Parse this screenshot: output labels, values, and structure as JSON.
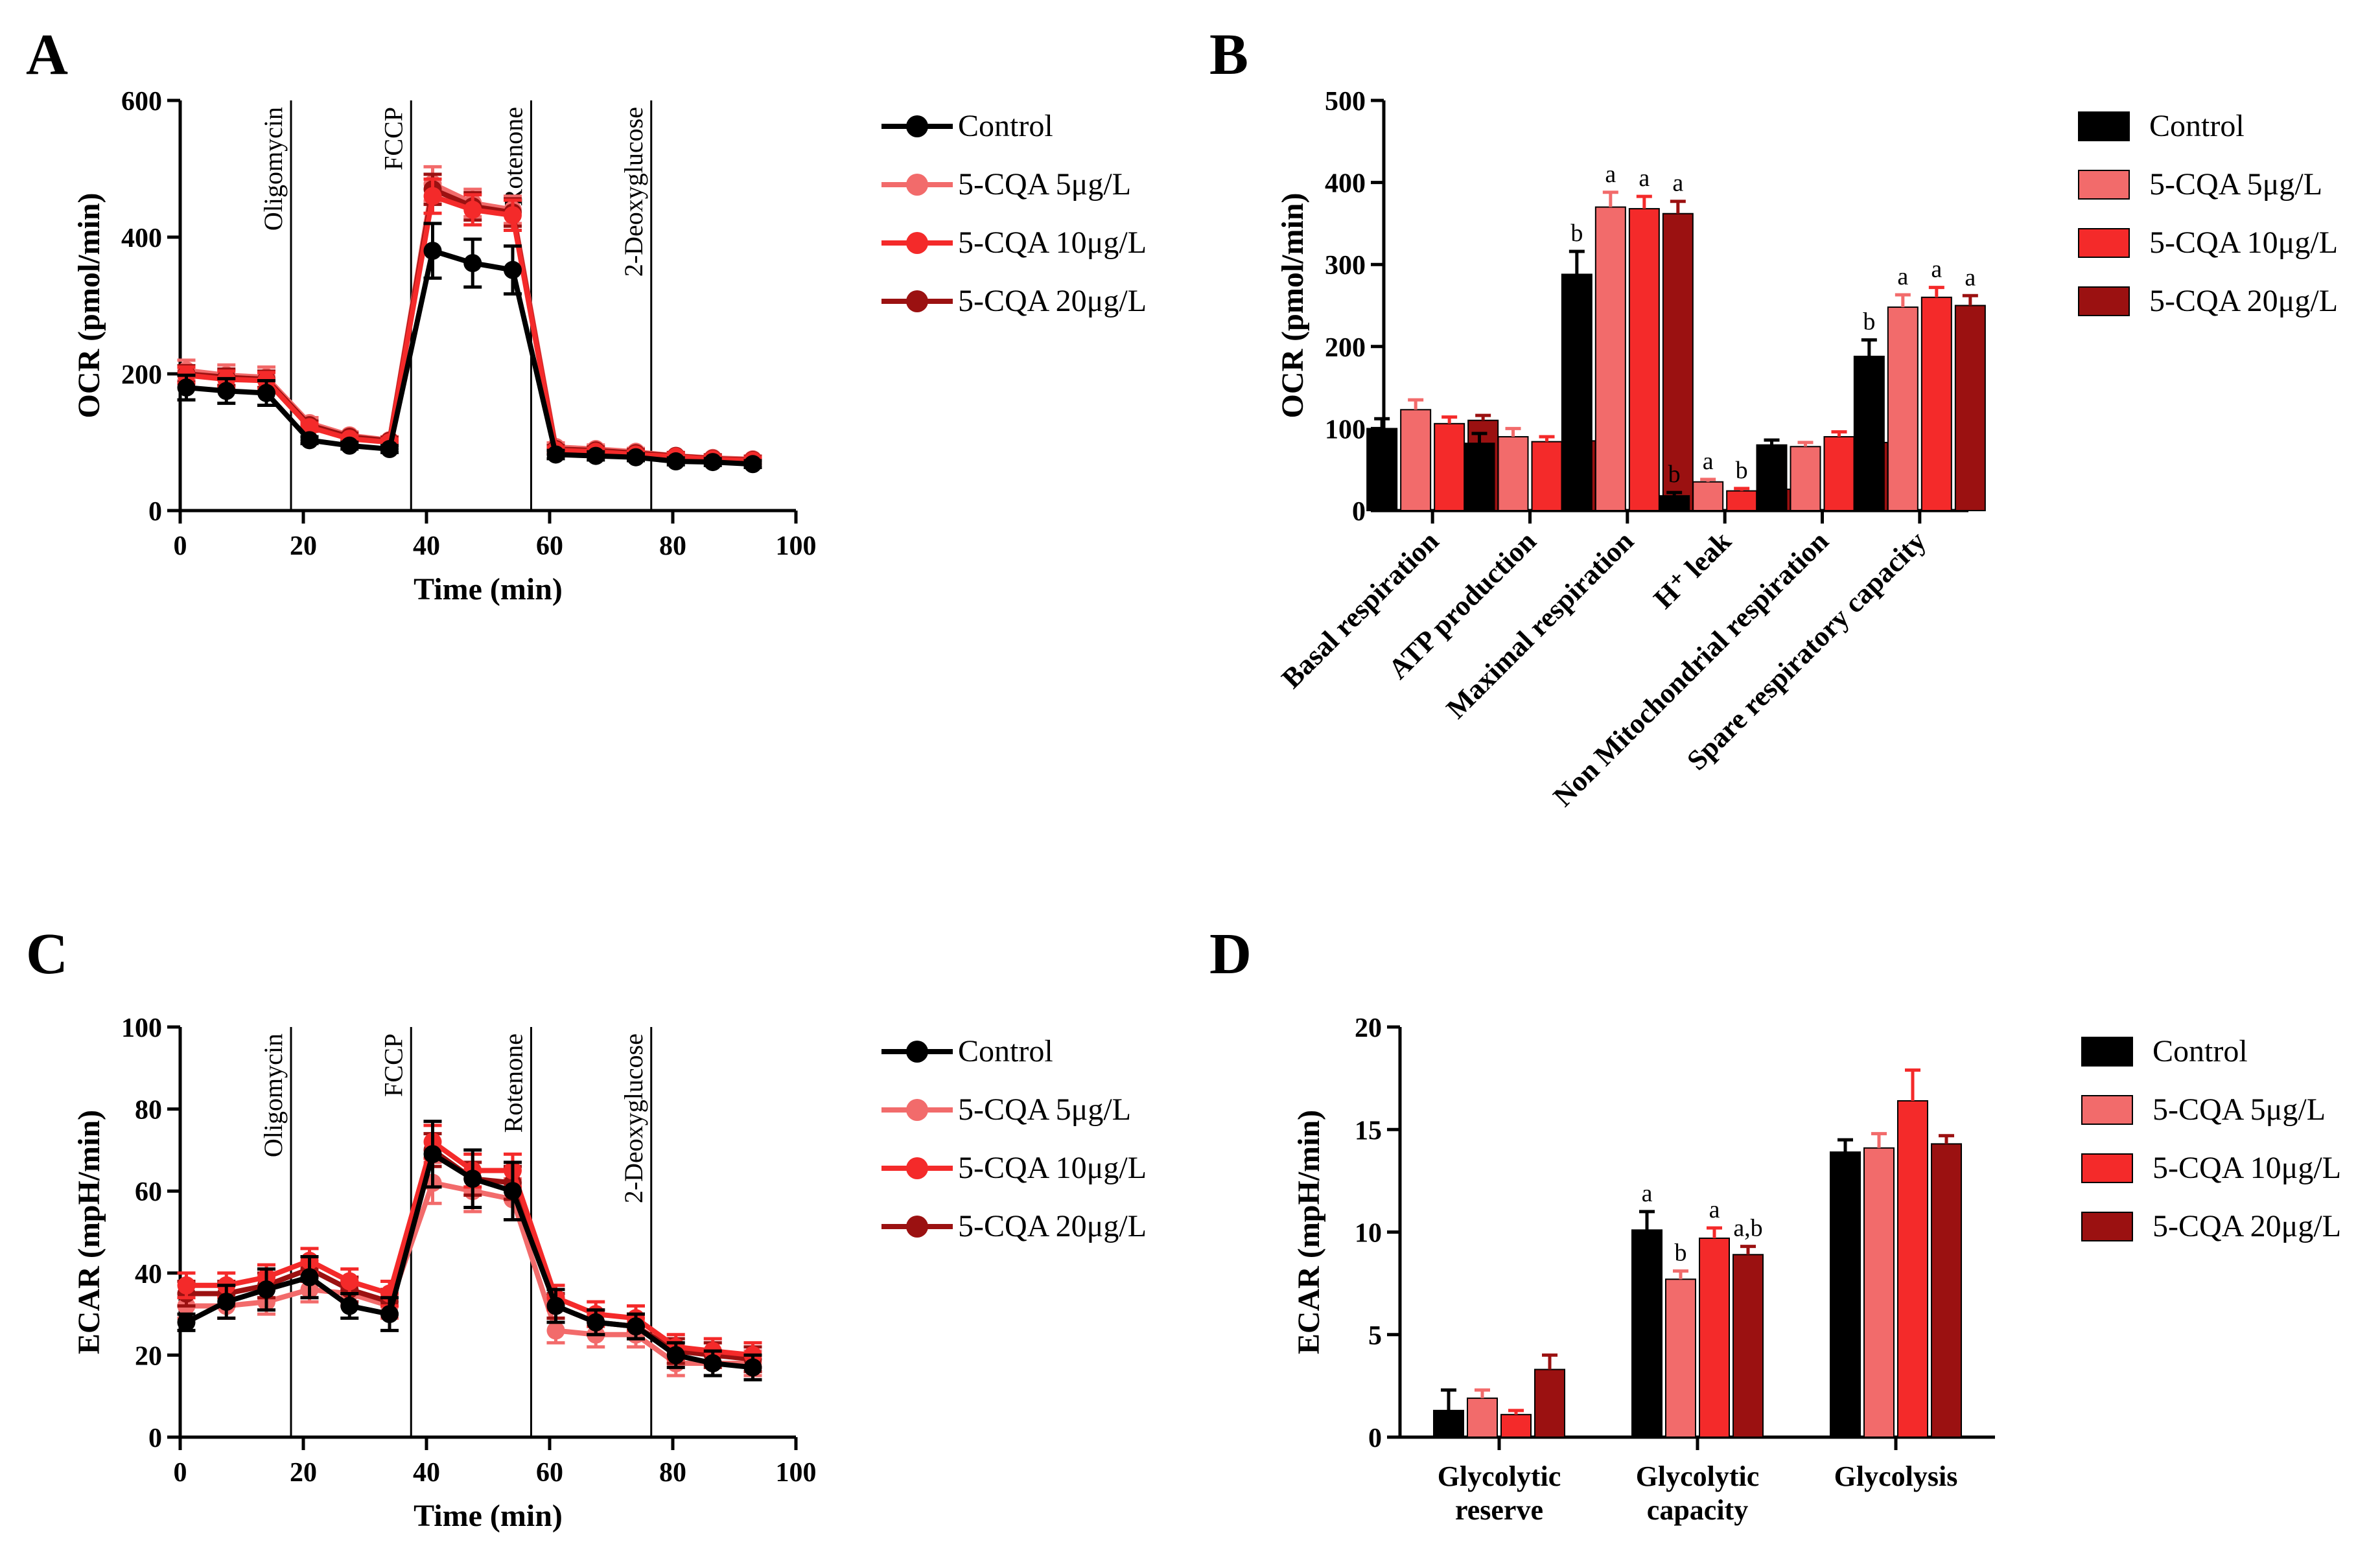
{
  "figure": {
    "panels": [
      "A",
      "B",
      "C",
      "D"
    ]
  },
  "colors": {
    "Control": "#000000",
    "5-CQA 5μg/L": "#f26b6b",
    "5-CQA 10μg/L": "#f42a2a",
    "5-CQA 20μg/L": "#9b1111"
  },
  "legend": {
    "labels": [
      "Control",
      "5-CQA 5μg/L",
      "5-CQA 10μg/L",
      "5-CQA 20μg/L"
    ]
  },
  "chart_data": [
    {
      "panel": "A",
      "type": "line",
      "xlabel": "Time (min)",
      "ylabel": "OCR (pmol/min)",
      "xlim": [
        0,
        100
      ],
      "ylim": [
        0,
        600
      ],
      "xticks": [
        0,
        20,
        40,
        60,
        80,
        100
      ],
      "yticks": [
        0,
        200,
        400,
        600
      ],
      "injections": [
        {
          "x": 18,
          "label": "Oligomycin"
        },
        {
          "x": 37.5,
          "label": "FCCP"
        },
        {
          "x": 57,
          "label": "Rotenone"
        },
        {
          "x": 76.5,
          "label": "2-Deoxyglucose"
        }
      ],
      "x": [
        1,
        7.5,
        14,
        21,
        27.5,
        34,
        41,
        47.5,
        54,
        61,
        67.5,
        74,
        80.5,
        86.5,
        93
      ],
      "series": [
        {
          "name": "Control",
          "values": [
            180,
            175,
            172,
            103,
            95,
            90,
            380,
            362,
            352,
            82,
            80,
            78,
            72,
            71,
            68
          ],
          "err": [
            18,
            18,
            18,
            5,
            5,
            5,
            40,
            35,
            35,
            6,
            6,
            5,
            5,
            5,
            5
          ]
        },
        {
          "name": "5-CQA 5μg/L",
          "values": [
            205,
            198,
            195,
            128,
            110,
            103,
            478,
            450,
            440,
            93,
            90,
            86,
            80,
            77,
            75
          ],
          "err": [
            15,
            15,
            15,
            8,
            5,
            5,
            25,
            20,
            20,
            6,
            6,
            5,
            5,
            5,
            5
          ]
        },
        {
          "name": "5-CQA 10μg/L",
          "values": [
            198,
            192,
            190,
            122,
            105,
            100,
            460,
            440,
            432,
            88,
            86,
            82,
            79,
            75,
            73
          ],
          "err": [
            12,
            12,
            12,
            6,
            5,
            5,
            25,
            22,
            22,
            5,
            5,
            5,
            5,
            5,
            5
          ]
        },
        {
          "name": "5-CQA 20μg/L",
          "values": [
            200,
            195,
            192,
            125,
            108,
            102,
            470,
            445,
            436,
            90,
            88,
            84,
            80,
            76,
            74
          ],
          "err": [
            12,
            12,
            12,
            6,
            5,
            5,
            22,
            20,
            20,
            5,
            5,
            5,
            5,
            5,
            5
          ]
        }
      ]
    },
    {
      "panel": "B",
      "type": "bar",
      "ylabel": "OCR (pmol/min)",
      "ylim": [
        0,
        500
      ],
      "yticks": [
        0,
        100,
        200,
        300,
        400,
        500
      ],
      "categories": [
        "Basal respiration",
        "ATP production",
        "Maximal respiration",
        "H⁺ leak",
        "Non Mitochondrial respiration",
        "Spare respiratory capacity"
      ],
      "series": [
        {
          "name": "Control",
          "values": [
            100,
            82,
            288,
            18,
            80,
            188
          ],
          "err": [
            12,
            12,
            28,
            4,
            6,
            20
          ],
          "letters": [
            "",
            "",
            "b",
            "b",
            "",
            "b"
          ]
        },
        {
          "name": "5-CQA 5μg/L",
          "values": [
            123,
            90,
            370,
            35,
            78,
            248
          ],
          "err": [
            12,
            10,
            18,
            3,
            5,
            15
          ],
          "letters": [
            "",
            "",
            "a",
            "a",
            "",
            "a"
          ]
        },
        {
          "name": "5-CQA 10μg/L",
          "values": [
            106,
            84,
            368,
            24,
            90,
            260
          ],
          "err": [
            8,
            6,
            15,
            3,
            6,
            12
          ],
          "letters": [
            "",
            "",
            "a",
            "b",
            "",
            "a"
          ]
        },
        {
          "name": "5-CQA 20μg/L",
          "values": [
            110,
            85,
            362,
            26,
            83,
            250
          ],
          "err": [
            6,
            6,
            15,
            3,
            4,
            12
          ],
          "letters": [
            "",
            "",
            "a",
            "b",
            "",
            "a"
          ]
        }
      ]
    },
    {
      "panel": "C",
      "type": "line",
      "xlabel": "Time (min)",
      "ylabel": "ECAR (mpH/min)",
      "xlim": [
        0,
        100
      ],
      "ylim": [
        0,
        100
      ],
      "xticks": [
        0,
        20,
        40,
        60,
        80,
        100
      ],
      "yticks": [
        0,
        20,
        40,
        60,
        80,
        100
      ],
      "injections": [
        {
          "x": 18,
          "label": "Oligomycin"
        },
        {
          "x": 37.5,
          "label": "FCCP"
        },
        {
          "x": 57,
          "label": "Rotenone"
        },
        {
          "x": 76.5,
          "label": "2-Deoxyglucose"
        }
      ],
      "x": [
        1,
        7.5,
        14,
        21,
        27.5,
        34,
        41,
        47.5,
        54,
        61,
        67.5,
        74,
        80.5,
        86.5,
        93
      ],
      "series": [
        {
          "name": "Control",
          "values": [
            28,
            33,
            36,
            39,
            32,
            30,
            69,
            63,
            60,
            32,
            28,
            27,
            20,
            18,
            17
          ],
          "err": [
            2,
            4,
            5,
            5,
            3,
            4,
            8,
            7,
            7,
            4,
            3,
            3,
            3,
            3,
            3
          ]
        },
        {
          "name": "5-CQA 5μg/L",
          "values": [
            32,
            32,
            33,
            36,
            35,
            32,
            62,
            60,
            58,
            26,
            25,
            25,
            18,
            18,
            18
          ],
          "err": [
            3,
            3,
            3,
            3,
            3,
            3,
            5,
            5,
            5,
            3,
            3,
            3,
            3,
            3,
            3
          ]
        },
        {
          "name": "5-CQA 10μg/L",
          "values": [
            37,
            37,
            39,
            43,
            38,
            35,
            72,
            65,
            65,
            34,
            30,
            29,
            22,
            21,
            20
          ],
          "err": [
            3,
            3,
            3,
            3,
            3,
            3,
            4,
            4,
            4,
            3,
            3,
            3,
            3,
            3,
            3
          ]
        },
        {
          "name": "5-CQA 20μg/L",
          "values": [
            35,
            35,
            37,
            41,
            36,
            33,
            70,
            63,
            62,
            32,
            28,
            27,
            21,
            20,
            19
          ],
          "err": [
            3,
            3,
            3,
            3,
            3,
            3,
            4,
            4,
            4,
            3,
            3,
            3,
            3,
            3,
            3
          ]
        }
      ]
    },
    {
      "panel": "D",
      "type": "bar",
      "ylabel": "ECAR (mpH/min)",
      "ylim": [
        0,
        20
      ],
      "yticks": [
        0,
        5,
        10,
        15,
        20
      ],
      "categories": [
        [
          "Glycolytic",
          "reserve"
        ],
        [
          "Glycolytic",
          "capacity"
        ],
        [
          "Glycolysis"
        ]
      ],
      "series": [
        {
          "name": "Control",
          "values": [
            1.3,
            10.1,
            13.9
          ],
          "err": [
            1.0,
            0.9,
            0.6
          ],
          "letters": [
            "",
            "a",
            ""
          ]
        },
        {
          "name": "5-CQA 5μg/L",
          "values": [
            1.9,
            7.7,
            14.1
          ],
          "err": [
            0.4,
            0.4,
            0.7
          ],
          "letters": [
            "",
            "b",
            ""
          ]
        },
        {
          "name": "5-CQA 10μg/L",
          "values": [
            1.1,
            9.7,
            16.4
          ],
          "err": [
            0.2,
            0.5,
            1.5
          ],
          "letters": [
            "",
            "a",
            ""
          ]
        },
        {
          "name": "5-CQA 20μg/L",
          "values": [
            3.3,
            8.9,
            14.3
          ],
          "err": [
            0.7,
            0.4,
            0.4
          ],
          "letters": [
            "",
            "a,b",
            ""
          ]
        }
      ]
    }
  ]
}
